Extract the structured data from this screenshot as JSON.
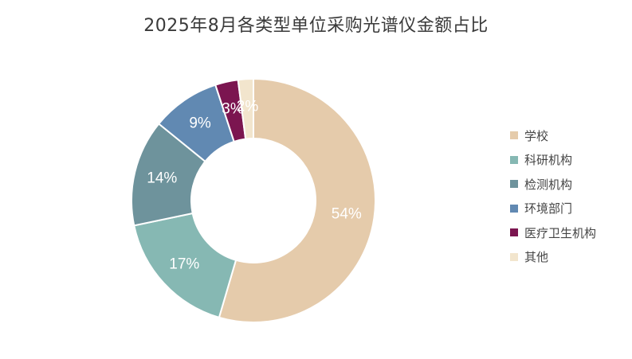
{
  "chart_data": {
    "type": "pie",
    "subtype": "donut",
    "title": "2025年8月各类型单位采购光谱仪金额占比",
    "categories": [
      "学校",
      "科研机构",
      "检测机构",
      "环境部门",
      "医疗卫生机构",
      "其他"
    ],
    "values": [
      54,
      17,
      14,
      9,
      3,
      2
    ],
    "labels": [
      "54%",
      "17%",
      "14%",
      "9%",
      "3%",
      "2%"
    ],
    "unit": "%",
    "colors": [
      "#e5cbab",
      "#86b8b3",
      "#6e939c",
      "#6189b2",
      "#7b1550",
      "#f2e5cd"
    ],
    "legend_position": "right",
    "start_angle_deg": 0,
    "direction": "clockwise"
  }
}
